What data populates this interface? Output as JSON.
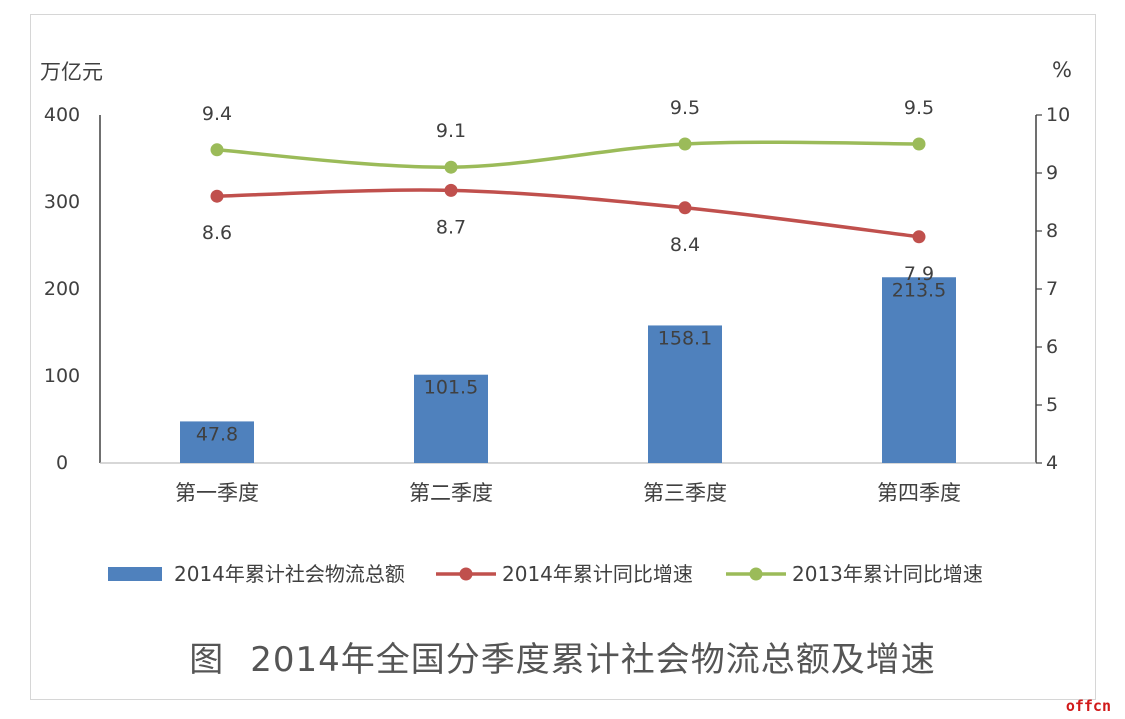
{
  "chart_data": {
    "type": "bar",
    "categories": [
      "第一季度",
      "第二季度",
      "第三季度",
      "第四季度"
    ],
    "y_left": {
      "label": "万亿元",
      "range": [
        0,
        400
      ],
      "ticks": [
        0,
        100,
        200,
        300,
        400
      ]
    },
    "y_right": {
      "label": "%",
      "range": [
        4,
        10
      ],
      "ticks": [
        4,
        5,
        6,
        7,
        8,
        9,
        10
      ]
    },
    "series": [
      {
        "name": "2014年累计社会物流总额",
        "kind": "bar",
        "axis": "left",
        "color": "#4f81bd",
        "values": [
          47.8,
          101.5,
          158.1,
          213.5
        ]
      },
      {
        "name": "2014年累计同比增速",
        "kind": "line",
        "axis": "right",
        "color": "#c0504d",
        "values": [
          8.6,
          8.7,
          8.4,
          7.9
        ]
      },
      {
        "name": "2013年累计同比增速",
        "kind": "line",
        "axis": "right",
        "color": "#9bbb59",
        "values": [
          9.4,
          9.1,
          9.5,
          9.5
        ]
      }
    ],
    "legend_position": "bottom",
    "grid": false,
    "title": "2014年全国分季度累计社会物流总额及增速"
  },
  "caption": {
    "prefix": "图",
    "title": "2014年全国分季度累计社会物流总额及增速"
  },
  "watermark": "offcn"
}
